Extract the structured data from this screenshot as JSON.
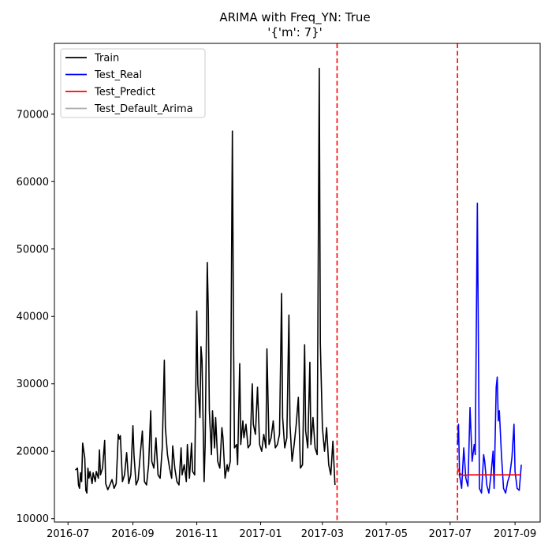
{
  "chart_data": {
    "type": "line",
    "title": "ARIMA with Freq_YN: True",
    "subtitle": "'{'m': 7}'",
    "xlabel": "",
    "ylabel": "",
    "grid": false,
    "legend_position": "top-left",
    "xlim": [
      "2016-06-18",
      "2017-09-25"
    ],
    "ylim": [
      9500,
      80500
    ],
    "x_ticks": [
      "2016-07",
      "2016-09",
      "2016-11",
      "2017-01",
      "2017-03",
      "2017-05",
      "2017-07",
      "2017-09"
    ],
    "y_ticks": [
      10000,
      20000,
      30000,
      40000,
      50000,
      60000,
      70000
    ],
    "vlines": [
      {
        "x": "2017-03-15",
        "color": "#ff0000",
        "style": "dashed"
      },
      {
        "x": "2017-07-08",
        "color": "#ff0000",
        "style": "dashed"
      }
    ],
    "series": [
      {
        "name": "Train",
        "color": "#000000",
        "points": [
          [
            "2016-07-08",
            17200
          ],
          [
            "2016-07-10",
            17500
          ],
          [
            "2016-07-11",
            15000
          ],
          [
            "2016-07-12",
            14500
          ],
          [
            "2016-07-13",
            16800
          ],
          [
            "2016-07-14",
            15500
          ],
          [
            "2016-07-15",
            21200
          ],
          [
            "2016-07-17",
            19000
          ],
          [
            "2016-07-18",
            14200
          ],
          [
            "2016-07-19",
            13800
          ],
          [
            "2016-07-20",
            17500
          ],
          [
            "2016-07-21",
            16000
          ],
          [
            "2016-07-22",
            17000
          ],
          [
            "2016-07-24",
            15200
          ],
          [
            "2016-07-25",
            16800
          ],
          [
            "2016-07-27",
            15500
          ],
          [
            "2016-07-28",
            17000
          ],
          [
            "2016-07-30",
            16000
          ],
          [
            "2016-07-31",
            20200
          ],
          [
            "2016-08-01",
            16500
          ],
          [
            "2016-08-03",
            17500
          ],
          [
            "2016-08-05",
            21600
          ],
          [
            "2016-08-06",
            15200
          ],
          [
            "2016-08-08",
            14300
          ],
          [
            "2016-08-10",
            15000
          ],
          [
            "2016-08-12",
            15800
          ],
          [
            "2016-08-14",
            14500
          ],
          [
            "2016-08-16",
            15200
          ],
          [
            "2016-08-18",
            22500
          ],
          [
            "2016-08-19",
            21800
          ],
          [
            "2016-08-20",
            22300
          ],
          [
            "2016-08-22",
            15500
          ],
          [
            "2016-08-24",
            16500
          ],
          [
            "2016-08-26",
            19800
          ],
          [
            "2016-08-28",
            15200
          ],
          [
            "2016-08-30",
            16500
          ],
          [
            "2016-09-01",
            23800
          ],
          [
            "2016-09-02",
            19500
          ],
          [
            "2016-09-04",
            15000
          ],
          [
            "2016-09-06",
            15800
          ],
          [
            "2016-09-08",
            19500
          ],
          [
            "2016-09-10",
            23000
          ],
          [
            "2016-09-12",
            15500
          ],
          [
            "2016-09-14",
            15000
          ],
          [
            "2016-09-16",
            18000
          ],
          [
            "2016-09-18",
            26000
          ],
          [
            "2016-09-19",
            18500
          ],
          [
            "2016-09-21",
            17500
          ],
          [
            "2016-09-23",
            22000
          ],
          [
            "2016-09-25",
            16500
          ],
          [
            "2016-09-27",
            16000
          ],
          [
            "2016-09-29",
            20500
          ],
          [
            "2016-10-01",
            33500
          ],
          [
            "2016-10-02",
            23500
          ],
          [
            "2016-10-04",
            19500
          ],
          [
            "2016-10-06",
            17500
          ],
          [
            "2016-10-08",
            16000
          ],
          [
            "2016-10-09",
            20800
          ],
          [
            "2016-10-11",
            17500
          ],
          [
            "2016-10-13",
            15500
          ],
          [
            "2016-10-15",
            15000
          ],
          [
            "2016-10-17",
            20500
          ],
          [
            "2016-10-18",
            16500
          ],
          [
            "2016-10-20",
            18000
          ],
          [
            "2016-10-22",
            15500
          ],
          [
            "2016-10-23",
            21000
          ],
          [
            "2016-10-25",
            16000
          ],
          [
            "2016-10-27",
            21200
          ],
          [
            "2016-10-28",
            17000
          ],
          [
            "2016-10-30",
            16500
          ],
          [
            "2016-11-01",
            40800
          ],
          [
            "2016-11-02",
            30000
          ],
          [
            "2016-11-04",
            25000
          ],
          [
            "2016-11-05",
            35500
          ],
          [
            "2016-11-06",
            33500
          ],
          [
            "2016-11-08",
            15500
          ],
          [
            "2016-11-09",
            21000
          ],
          [
            "2016-11-11",
            48000
          ],
          [
            "2016-11-12",
            41000
          ],
          [
            "2016-11-13",
            26000
          ],
          [
            "2016-11-15",
            19500
          ],
          [
            "2016-11-16",
            26000
          ],
          [
            "2016-11-18",
            20500
          ],
          [
            "2016-11-19",
            25000
          ],
          [
            "2016-11-21",
            18500
          ],
          [
            "2016-11-23",
            17500
          ],
          [
            "2016-11-25",
            23500
          ],
          [
            "2016-11-26",
            22000
          ],
          [
            "2016-11-28",
            16000
          ],
          [
            "2016-11-30",
            18000
          ],
          [
            "2016-12-01",
            17000
          ],
          [
            "2016-12-03",
            18500
          ],
          [
            "2016-12-05",
            67500
          ],
          [
            "2016-12-06",
            39000
          ],
          [
            "2016-12-07",
            20500
          ],
          [
            "2016-12-09",
            21000
          ],
          [
            "2016-12-10",
            18000
          ],
          [
            "2016-12-12",
            33000
          ],
          [
            "2016-12-13",
            21000
          ],
          [
            "2016-12-15",
            24500
          ],
          [
            "2016-12-16",
            22000
          ],
          [
            "2016-12-18",
            24000
          ],
          [
            "2016-12-20",
            20500
          ],
          [
            "2016-12-22",
            21000
          ],
          [
            "2016-12-24",
            30000
          ],
          [
            "2016-12-25",
            24000
          ],
          [
            "2016-12-27",
            22500
          ],
          [
            "2016-12-29",
            29500
          ],
          [
            "2016-12-31",
            21000
          ],
          [
            "2017-01-02",
            20000
          ],
          [
            "2017-01-04",
            22500
          ],
          [
            "2017-01-06",
            20500
          ],
          [
            "2017-01-07",
            35200
          ],
          [
            "2017-01-09",
            21000
          ],
          [
            "2017-01-11",
            22000
          ],
          [
            "2017-01-13",
            24500
          ],
          [
            "2017-01-15",
            20500
          ],
          [
            "2017-01-17",
            21000
          ],
          [
            "2017-01-19",
            22500
          ],
          [
            "2017-01-21",
            43400
          ],
          [
            "2017-01-22",
            25000
          ],
          [
            "2017-01-24",
            20500
          ],
          [
            "2017-01-26",
            22000
          ],
          [
            "2017-01-28",
            40200
          ],
          [
            "2017-01-29",
            24000
          ],
          [
            "2017-01-31",
            18500
          ],
          [
            "2017-02-02",
            21000
          ],
          [
            "2017-02-04",
            24000
          ],
          [
            "2017-02-06",
            28000
          ],
          [
            "2017-02-08",
            17500
          ],
          [
            "2017-02-10",
            18000
          ],
          [
            "2017-02-12",
            35800
          ],
          [
            "2017-02-13",
            23000
          ],
          [
            "2017-02-15",
            20500
          ],
          [
            "2017-02-17",
            33200
          ],
          [
            "2017-02-18",
            21000
          ],
          [
            "2017-02-20",
            25000
          ],
          [
            "2017-02-22",
            20500
          ],
          [
            "2017-02-24",
            19500
          ],
          [
            "2017-02-26",
            76800
          ],
          [
            "2017-02-27",
            36000
          ],
          [
            "2017-03-01",
            23500
          ],
          [
            "2017-03-03",
            20000
          ],
          [
            "2017-03-05",
            23500
          ],
          [
            "2017-03-07",
            18000
          ],
          [
            "2017-03-09",
            16500
          ],
          [
            "2017-03-11",
            21500
          ],
          [
            "2017-03-13",
            15000
          ]
        ]
      },
      {
        "name": "Test_Real",
        "color": "#0000ff",
        "points": [
          [
            "2017-07-08",
            21000
          ],
          [
            "2017-07-09",
            24000
          ],
          [
            "2017-07-10",
            16500
          ],
          [
            "2017-07-12",
            14500
          ],
          [
            "2017-07-14",
            20500
          ],
          [
            "2017-07-16",
            16000
          ],
          [
            "2017-07-18",
            14800
          ],
          [
            "2017-07-20",
            26500
          ],
          [
            "2017-07-22",
            18500
          ],
          [
            "2017-07-24",
            21000
          ],
          [
            "2017-07-25",
            19500
          ],
          [
            "2017-07-27",
            56800
          ],
          [
            "2017-07-28",
            36000
          ],
          [
            "2017-07-29",
            14500
          ],
          [
            "2017-07-31",
            13800
          ],
          [
            "2017-08-02",
            19500
          ],
          [
            "2017-08-03",
            18500
          ],
          [
            "2017-08-05",
            15000
          ],
          [
            "2017-08-07",
            13800
          ],
          [
            "2017-08-09",
            16500
          ],
          [
            "2017-08-11",
            20000
          ],
          [
            "2017-08-12",
            14500
          ],
          [
            "2017-08-14",
            29500
          ],
          [
            "2017-08-15",
            31000
          ],
          [
            "2017-08-16",
            24500
          ],
          [
            "2017-08-17",
            26000
          ],
          [
            "2017-08-19",
            19500
          ],
          [
            "2017-08-21",
            14500
          ],
          [
            "2017-08-23",
            13800
          ],
          [
            "2017-08-25",
            15500
          ],
          [
            "2017-08-27",
            16500
          ],
          [
            "2017-08-29",
            19000
          ],
          [
            "2017-08-31",
            24000
          ],
          [
            "2017-09-01",
            17000
          ],
          [
            "2017-09-03",
            14500
          ],
          [
            "2017-09-05",
            14200
          ],
          [
            "2017-09-07",
            18000
          ]
        ]
      },
      {
        "name": "Test_Predict",
        "color": "#ff0000",
        "points": [
          [
            "2017-07-08",
            17500
          ],
          [
            "2017-07-10",
            16800
          ],
          [
            "2017-07-12",
            16500
          ],
          [
            "2017-07-14",
            16400
          ],
          [
            "2017-07-20",
            16500
          ],
          [
            "2017-08-01",
            16500
          ],
          [
            "2017-08-15",
            16500
          ],
          [
            "2017-09-07",
            16500
          ]
        ]
      },
      {
        "name": "Test_Default_Arima",
        "color": "#aaaaaa",
        "points": [
          [
            "2017-07-08",
            16500
          ],
          [
            "2017-09-07",
            16500
          ]
        ]
      }
    ]
  }
}
